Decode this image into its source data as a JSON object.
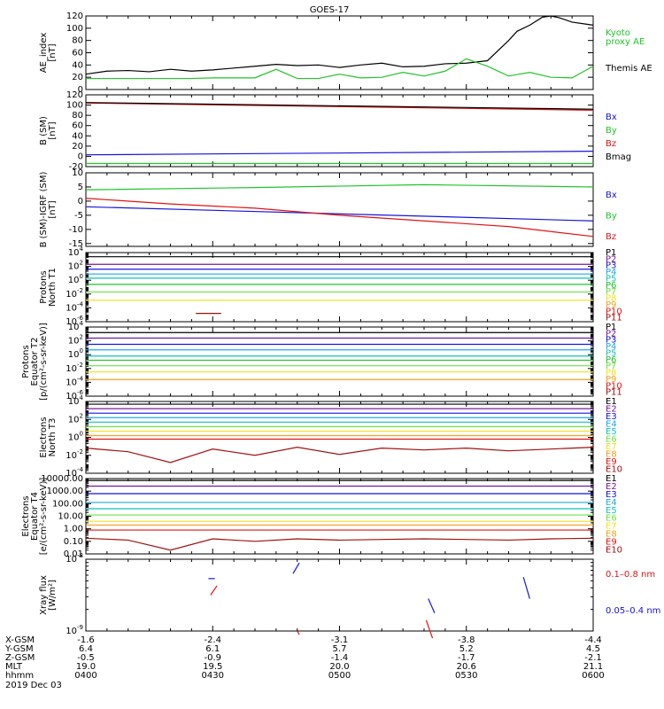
{
  "title": "GOES-17",
  "date": "2019 Dec 03",
  "colors": {
    "black": "#000000",
    "green": "#22c32a",
    "blue": "#1515d8",
    "red": "#e01414",
    "darkred": "#a01010",
    "purple": "#7a1a9a",
    "navy": "#1a1aa0",
    "cyan": "#20a8e0",
    "teal": "#12c0b8",
    "lime": "#6ee04a",
    "yellow": "#f0e020",
    "orange": "#f0a020",
    "brown": "#a03010"
  },
  "footer": {
    "labels": [
      "X-GSM",
      "Y-GSM",
      "Z-GSM",
      "MLT",
      "hhmm"
    ],
    "rows": [
      [
        "-1.6",
        "-2.4",
        "-3.1",
        "-3.8",
        "-4.4"
      ],
      [
        "6.4",
        "6.1",
        "5.7",
        "5.2",
        "4.5"
      ],
      [
        "-0.5",
        "-0.9",
        "-1.4",
        "-1.7",
        "-2.1"
      ],
      [
        "19.0",
        "19.5",
        "20.0",
        "20.6",
        "21.1"
      ],
      [
        "0400",
        "0430",
        "0500",
        "0530",
        "0600"
      ]
    ]
  },
  "chart_data": [
    {
      "type": "line",
      "ylabel": [
        "AE_index",
        "[nT]"
      ],
      "ylim": [
        0,
        120
      ],
      "yticks": [
        "0",
        "20",
        "40",
        "60",
        "80",
        "100",
        "120"
      ],
      "legend": [
        {
          "text": "Kyoto",
          "color": "#22c32a"
        },
        {
          "text": "proxy AE",
          "color": "#22c32a"
        },
        {
          "text": "Themis AE",
          "color": "#000000"
        }
      ],
      "x_range": [
        "0400",
        "0600"
      ],
      "series": [
        {
          "name": "Themis AE",
          "color": "#000000",
          "x": [
            0,
            5,
            10,
            15,
            20,
            25,
            30,
            35,
            40,
            45,
            50,
            55,
            60,
            65,
            70,
            75,
            80,
            85,
            90,
            95,
            100,
            102,
            105,
            108,
            110,
            112,
            115,
            118,
            120
          ],
          "values": [
            25,
            30,
            31,
            29,
            33,
            30,
            32,
            35,
            38,
            41,
            39,
            40,
            36,
            40,
            43,
            37,
            38,
            42,
            43,
            47,
            80,
            95,
            105,
            118,
            120,
            117,
            110,
            107,
            105
          ]
        },
        {
          "name": "Kyoto proxy AE",
          "color": "#22c32a",
          "x": [
            0,
            5,
            10,
            15,
            20,
            25,
            30,
            35,
            40,
            45,
            50,
            55,
            60,
            65,
            70,
            75,
            80,
            85,
            90,
            95,
            100,
            105,
            110,
            115,
            120
          ],
          "values": [
            18,
            18,
            18,
            18,
            18,
            18,
            19,
            19,
            19,
            33,
            18,
            18,
            25,
            19,
            20,
            28,
            22,
            30,
            50,
            38,
            22,
            28,
            20,
            19,
            38
          ]
        }
      ]
    },
    {
      "type": "line",
      "ylabel": [
        "B (SM)",
        "[nT]"
      ],
      "ylim": [
        -20,
        120
      ],
      "yticks": [
        "-20",
        "0",
        "20",
        "40",
        "60",
        "80",
        "100",
        "120"
      ],
      "legend": [
        {
          "text": "Bx",
          "color": "#1515d8"
        },
        {
          "text": "By",
          "color": "#22c32a"
        },
        {
          "text": "Bz",
          "color": "#e01414"
        },
        {
          "text": "Bmag",
          "color": "#000000"
        }
      ],
      "series": [
        {
          "name": "Bx",
          "color": "#1515d8",
          "x": [
            0,
            120
          ],
          "values": [
            3,
            10
          ]
        },
        {
          "name": "By",
          "color": "#22c32a",
          "x": [
            0,
            120
          ],
          "values": [
            -14,
            -14
          ]
        },
        {
          "name": "Bz",
          "color": "#e01414",
          "x": [
            0,
            120
          ],
          "values": [
            104,
            90
          ]
        },
        {
          "name": "Bmag",
          "color": "#000000",
          "x": [
            0,
            120
          ],
          "values": [
            105,
            92
          ]
        }
      ]
    },
    {
      "type": "line",
      "ylabel": [
        "B (SM)-IGRF (SM)",
        "[nT]"
      ],
      "ylim": [
        -16,
        10
      ],
      "yticks": [
        "-15",
        "-10",
        "-5",
        "0",
        "5",
        "10"
      ],
      "legend": [
        {
          "text": "Bx",
          "color": "#1515d8"
        },
        {
          "text": "By",
          "color": "#22c32a"
        },
        {
          "text": "Bz",
          "color": "#e01414"
        }
      ],
      "series": [
        {
          "name": "Bx",
          "color": "#1515d8",
          "x": [
            0,
            120
          ],
          "values": [
            -2,
            -7
          ]
        },
        {
          "name": "By",
          "color": "#22c32a",
          "x": [
            0,
            40,
            80,
            120
          ],
          "values": [
            4,
            4.8,
            5.8,
            5
          ]
        },
        {
          "name": "Bz",
          "color": "#e01414",
          "x": [
            0,
            20,
            40,
            60,
            80,
            100,
            120
          ],
          "values": [
            1,
            -1,
            -2.5,
            -5,
            -7,
            -9,
            -12.5
          ]
        }
      ]
    },
    {
      "type": "line",
      "ylabel": [
        "Protons",
        "North T1"
      ],
      "log": true,
      "ylim_exp": [
        -6,
        4
      ],
      "yticks": [
        {
          "m": "10",
          "e": "4"
        },
        {
          "m": "10",
          "e": "2"
        },
        {
          "m": "10",
          "e": "0"
        },
        {
          "m": "10",
          "e": "-2"
        },
        {
          "m": "10",
          "e": "-4"
        },
        {
          "m": "10",
          "e": "-6"
        }
      ],
      "legend": [
        {
          "text": "P1",
          "color": "#000000"
        },
        {
          "text": "P2",
          "color": "#7a1a9a"
        },
        {
          "text": "P3",
          "color": "#1515d8"
        },
        {
          "text": "P4",
          "color": "#20a8e0"
        },
        {
          "text": "P5",
          "color": "#12c0b8"
        },
        {
          "text": "P6",
          "color": "#22c32a"
        },
        {
          "text": "P7",
          "color": "#6ee04a"
        },
        {
          "text": "P8",
          "color": "#f0e020"
        },
        {
          "text": "P9",
          "color": "#f0a020"
        },
        {
          "text": "P10",
          "color": "#e01414"
        },
        {
          "text": "P11",
          "color": "#a01010"
        }
      ],
      "series": [
        {
          "name": "P1",
          "color": "#000000",
          "values": [
            3.4
          ]
        },
        {
          "name": "P2",
          "color": "#7a1a9a",
          "values": [
            2.3
          ]
        },
        {
          "name": "P3",
          "color": "#1515d8",
          "values": [
            1.6
          ]
        },
        {
          "name": "P4",
          "color": "#20a8e0",
          "values": [
            0.9
          ]
        },
        {
          "name": "P5",
          "color": "#12c0b8",
          "values": [
            0.3
          ]
        },
        {
          "name": "P6",
          "color": "#22c32a",
          "values": [
            -0.6
          ]
        },
        {
          "name": "P7",
          "color": "#6ee04a",
          "values": [
            -1.7
          ]
        },
        {
          "name": "P8",
          "color": "#f0e020",
          "values": [
            -2.9
          ]
        },
        {
          "name": "P10",
          "color": "#a01010",
          "segment": [
            26,
            32
          ],
          "values": [
            -4.8
          ]
        }
      ]
    },
    {
      "type": "line",
      "ylabel": [
        "Protons",
        "Equator T2",
        "[p/(cm²-s-sr-keV)]"
      ],
      "log": true,
      "ylim_exp": [
        -6,
        4
      ],
      "yticks": [
        {
          "m": "10",
          "e": "4"
        },
        {
          "m": "10",
          "e": "2"
        },
        {
          "m": "10",
          "e": "0"
        },
        {
          "m": "10",
          "e": "-2"
        },
        {
          "m": "10",
          "e": "-4"
        },
        {
          "m": "10",
          "e": "-6"
        }
      ],
      "legend": [
        {
          "text": "P1",
          "color": "#000000"
        },
        {
          "text": "P2",
          "color": "#7a1a9a"
        },
        {
          "text": "P3",
          "color": "#1515d8"
        },
        {
          "text": "P4",
          "color": "#20a8e0"
        },
        {
          "text": "P5",
          "color": "#12c0b8"
        },
        {
          "text": "P6",
          "color": "#22c32a"
        },
        {
          "text": "P7",
          "color": "#6ee04a"
        },
        {
          "text": "P8",
          "color": "#f0e020"
        },
        {
          "text": "P9",
          "color": "#f0a020"
        },
        {
          "text": "P10",
          "color": "#e01414"
        },
        {
          "text": "P11",
          "color": "#a01010"
        }
      ],
      "series": [
        {
          "name": "P1",
          "color": "#000000",
          "values": [
            3.2
          ]
        },
        {
          "name": "P2",
          "color": "#7a1a9a",
          "values": [
            2.4
          ]
        },
        {
          "name": "P3",
          "color": "#1515d8",
          "values": [
            1.5
          ]
        },
        {
          "name": "P4",
          "color": "#20a8e0",
          "values": [
            0.7
          ]
        },
        {
          "name": "P5",
          "color": "#12c0b8",
          "values": [
            -0.2
          ]
        },
        {
          "name": "P6",
          "color": "#22c32a",
          "values": [
            -0.8
          ]
        },
        {
          "name": "P7",
          "color": "#6ee04a",
          "values": [
            -1.6
          ]
        },
        {
          "name": "P8",
          "color": "#f0e020",
          "values": [
            -2.5
          ]
        },
        {
          "name": "P9",
          "color": "#f0a020",
          "values": [
            -3.6
          ]
        }
      ]
    },
    {
      "type": "line",
      "ylabel": [
        "Electrons",
        "North T3"
      ],
      "log": true,
      "ylim_exp": [
        -4,
        4
      ],
      "yticks": [
        {
          "m": "10",
          "e": "4"
        },
        {
          "m": "10",
          "e": "2"
        },
        {
          "m": "10",
          "e": "0"
        },
        {
          "m": "10",
          "e": "-2"
        },
        {
          "m": "10",
          "e": "-4"
        }
      ],
      "legend": [
        {
          "text": "E1",
          "color": "#000000"
        },
        {
          "text": "E2",
          "color": "#7a1a9a"
        },
        {
          "text": "E3",
          "color": "#1515d8"
        },
        {
          "text": "E4",
          "color": "#20a8e0"
        },
        {
          "text": "E5",
          "color": "#12c0b8"
        },
        {
          "text": "E6",
          "color": "#6ee04a"
        },
        {
          "text": "E7",
          "color": "#f0e020"
        },
        {
          "text": "E8",
          "color": "#f0a020"
        },
        {
          "text": "E9",
          "color": "#e01414"
        },
        {
          "text": "E10",
          "color": "#a01010"
        }
      ],
      "series": [
        {
          "name": "E1",
          "color": "#000000",
          "values": [
            3.7
          ]
        },
        {
          "name": "E2",
          "color": "#7a1a9a",
          "values": [
            3.2
          ]
        },
        {
          "name": "E3",
          "color": "#1515d8",
          "values": [
            2.7
          ]
        },
        {
          "name": "E4",
          "color": "#20a8e0",
          "values": [
            2.2
          ]
        },
        {
          "name": "E5",
          "color": "#12c0b8",
          "values": [
            1.7
          ]
        },
        {
          "name": "E6",
          "color": "#6ee04a",
          "values": [
            1.2
          ]
        },
        {
          "name": "E7",
          "color": "#f0e020",
          "values": [
            0.7
          ]
        },
        {
          "name": "E8",
          "color": "#f0a020",
          "values": [
            0.2
          ]
        },
        {
          "name": "E9",
          "color": "#e01414",
          "values": [
            -0.2
          ]
        },
        {
          "name": "E10",
          "color": "#a01010",
          "x": [
            0,
            10,
            20,
            30,
            40,
            50,
            60,
            70,
            80,
            90,
            100,
            110,
            120
          ],
          "values": [
            -1.2,
            -1.6,
            -2.8,
            -1.3,
            -2.0,
            -1.1,
            -1.9,
            -1.2,
            -1.4,
            -1.2,
            -1.5,
            -1.3,
            -1.1
          ]
        }
      ]
    },
    {
      "type": "line",
      "ylabel": [
        "Electrons",
        "Equator T4",
        "[e/(cm²-s-sr-keV)]"
      ],
      "log": true,
      "ylim_exp": [
        -2,
        4
      ],
      "yticks": [
        "10000.00",
        "1000.00",
        "100.00",
        "10.00",
        "1.00",
        "0.10",
        "0.01"
      ],
      "legend": [
        {
          "text": "E1",
          "color": "#000000"
        },
        {
          "text": "E2",
          "color": "#7a1a9a"
        },
        {
          "text": "E3",
          "color": "#1515d8"
        },
        {
          "text": "E4",
          "color": "#20a8e0"
        },
        {
          "text": "E5",
          "color": "#12c0b8"
        },
        {
          "text": "E6",
          "color": "#6ee04a"
        },
        {
          "text": "E7",
          "color": "#f0e020"
        },
        {
          "text": "E8",
          "color": "#f0a020"
        },
        {
          "text": "E9",
          "color": "#e01414"
        },
        {
          "text": "E10",
          "color": "#a01010"
        }
      ],
      "series": [
        {
          "name": "E1",
          "color": "#000000",
          "values": [
            3.85
          ]
        },
        {
          "name": "E2",
          "color": "#7a1a9a",
          "values": [
            3.4
          ]
        },
        {
          "name": "E3",
          "color": "#1515d8",
          "values": [
            2.8
          ]
        },
        {
          "name": "E4",
          "color": "#20a8e0",
          "values": [
            2.1
          ]
        },
        {
          "name": "E5",
          "color": "#12c0b8",
          "values": [
            1.6
          ]
        },
        {
          "name": "E6",
          "color": "#6ee04a",
          "values": [
            1.1
          ]
        },
        {
          "name": "E7",
          "color": "#f0e020",
          "values": [
            0.6
          ]
        },
        {
          "name": "E8",
          "color": "#f0a020",
          "values": [
            0.3
          ]
        },
        {
          "name": "E9",
          "color": "#e01414",
          "values": [
            -0.1
          ]
        },
        {
          "name": "E10",
          "color": "#a01010",
          "x": [
            0,
            10,
            20,
            30,
            40,
            50,
            60,
            70,
            80,
            90,
            100,
            110,
            120
          ],
          "values": [
            -0.75,
            -0.9,
            -1.7,
            -0.8,
            -1.0,
            -0.8,
            -0.9,
            -0.85,
            -0.8,
            -0.85,
            -0.9,
            -0.8,
            -0.75
          ]
        }
      ]
    },
    {
      "type": "scatter",
      "ylabel": [
        "Xray flux",
        "[W/m²]"
      ],
      "log": true,
      "ylim_exp": [
        -9,
        -8
      ],
      "yticks": [
        {
          "m": "10",
          "e": "-8"
        },
        {
          "m": "10",
          "e": "-9"
        }
      ],
      "legend": [
        {
          "text": "0.1–0.8 nm",
          "color": "#e01414"
        },
        {
          "text": "0.05–0.4 nm",
          "color": "#1515d8"
        }
      ],
      "segments": [
        {
          "color": "#1515d8",
          "x": [
            29,
            30.5
          ],
          "y": [
            -8.27,
            -8.27
          ]
        },
        {
          "color": "#e01414",
          "x": [
            29.5,
            31
          ],
          "y": [
            -8.5,
            -8.37
          ]
        },
        {
          "color": "#1515d8",
          "x": [
            49,
            50.5
          ],
          "y": [
            -8.2,
            -8.05
          ]
        },
        {
          "color": "#e01414",
          "x": [
            50,
            50.5
          ],
          "y": [
            -9.0,
            -9.05
          ]
        },
        {
          "color": "#1515d8",
          "x": [
            81,
            82.5
          ],
          "y": [
            -8.55,
            -8.75
          ]
        },
        {
          "color": "#e01414",
          "x": [
            80.5,
            82
          ],
          "y": [
            -8.85,
            -9.1
          ]
        },
        {
          "color": "#1515d8",
          "x": [
            103.5,
            105
          ],
          "y": [
            -8.25,
            -8.55
          ]
        }
      ]
    }
  ]
}
